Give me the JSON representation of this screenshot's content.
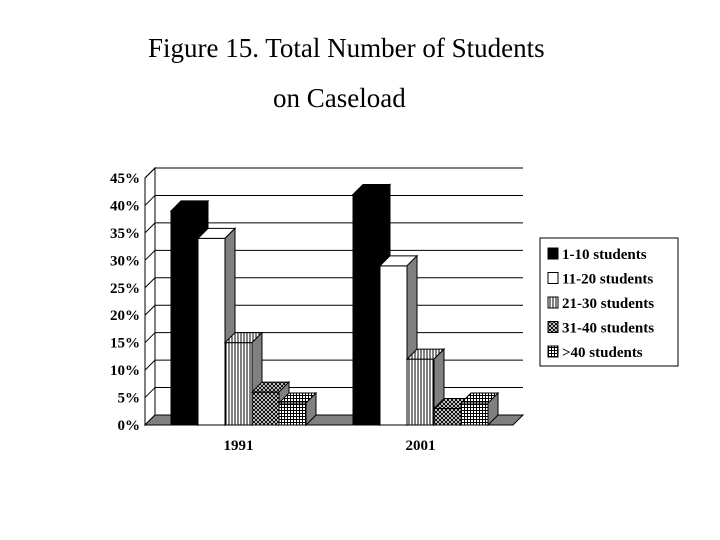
{
  "title_line1": "Figure 15. Total Number of Students",
  "title_line2": "on Caseload",
  "chart_data": {
    "type": "bar",
    "categories": [
      "1991",
      "2001"
    ],
    "series": [
      {
        "name": "1-10 students",
        "values": [
          39,
          42
        ],
        "pattern": "solid-black"
      },
      {
        "name": "11-20 students",
        "values": [
          34,
          29
        ],
        "pattern": "white"
      },
      {
        "name": "21-30 students",
        "values": [
          15,
          12
        ],
        "pattern": "vertical-lines"
      },
      {
        "name": "31-40 students",
        "values": [
          6,
          3
        ],
        "pattern": "crosshatch"
      },
      {
        "name": ">40 students",
        "values": [
          4,
          4
        ],
        "pattern": "grid"
      }
    ],
    "ylim": [
      0,
      45
    ],
    "yticks": [
      "0%",
      "5%",
      "10%",
      "15%",
      "20%",
      "25%",
      "30%",
      "35%",
      "40%",
      "45%"
    ],
    "grid": true,
    "legend_position": "right",
    "colors": {
      "floor": "#808080",
      "side": "#808080",
      "grid": "#000000"
    }
  }
}
